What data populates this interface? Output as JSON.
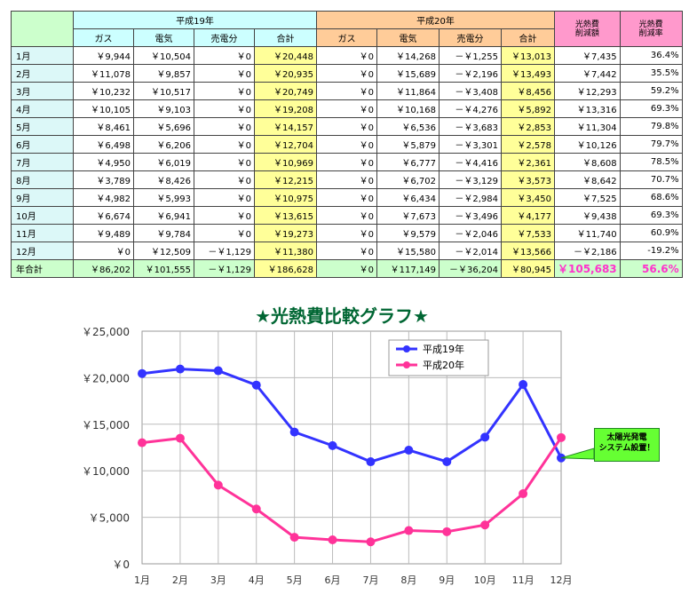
{
  "table": {
    "group_2007": "平成19年",
    "group_2008": "平成20年",
    "col_reduction_amount": [
      "光熱費",
      "削減額"
    ],
    "col_reduction_rate": [
      "光熱費",
      "削減率"
    ],
    "subheaders": [
      "ガス",
      "電気",
      "売電分",
      "合計",
      "ガス",
      "電気",
      "売電分",
      "合計"
    ],
    "rows": [
      {
        "month": "1月",
        "y19": [
          "￥9,944",
          "￥10,504",
          "￥0",
          "￥20,448"
        ],
        "y20": [
          "￥0",
          "￥14,268",
          "－￥1,255",
          "￥13,013"
        ],
        "reduction": "￥7,435",
        "rate": "36.4%"
      },
      {
        "month": "2月",
        "y19": [
          "￥11,078",
          "￥9,857",
          "￥0",
          "￥20,935"
        ],
        "y20": [
          "￥0",
          "￥15,689",
          "－￥2,196",
          "￥13,493"
        ],
        "reduction": "￥7,442",
        "rate": "35.5%"
      },
      {
        "month": "3月",
        "y19": [
          "￥10,232",
          "￥10,517",
          "￥0",
          "￥20,749"
        ],
        "y20": [
          "￥0",
          "￥11,864",
          "－￥3,408",
          "￥8,456"
        ],
        "reduction": "￥12,293",
        "rate": "59.2%"
      },
      {
        "month": "4月",
        "y19": [
          "￥10,105",
          "￥9,103",
          "￥0",
          "￥19,208"
        ],
        "y20": [
          "￥0",
          "￥10,168",
          "－￥4,276",
          "￥5,892"
        ],
        "reduction": "￥13,316",
        "rate": "69.3%"
      },
      {
        "month": "5月",
        "y19": [
          "￥8,461",
          "￥5,696",
          "￥0",
          "￥14,157"
        ],
        "y20": [
          "￥0",
          "￥6,536",
          "－￥3,683",
          "￥2,853"
        ],
        "reduction": "￥11,304",
        "rate": "79.8%"
      },
      {
        "month": "6月",
        "y19": [
          "￥6,498",
          "￥6,206",
          "￥0",
          "￥12,704"
        ],
        "y20": [
          "￥0",
          "￥5,879",
          "－￥3,301",
          "￥2,578"
        ],
        "reduction": "￥10,126",
        "rate": "79.7%"
      },
      {
        "month": "7月",
        "y19": [
          "￥4,950",
          "￥6,019",
          "￥0",
          "￥10,969"
        ],
        "y20": [
          "￥0",
          "￥6,777",
          "－￥4,416",
          "￥2,361"
        ],
        "reduction": "￥8,608",
        "rate": "78.5%"
      },
      {
        "month": "8月",
        "y19": [
          "￥3,789",
          "￥8,426",
          "￥0",
          "￥12,215"
        ],
        "y20": [
          "￥0",
          "￥6,702",
          "－￥3,129",
          "￥3,573"
        ],
        "reduction": "￥8,642",
        "rate": "70.7%"
      },
      {
        "month": "9月",
        "y19": [
          "￥4,982",
          "￥5,993",
          "￥0",
          "￥10,975"
        ],
        "y20": [
          "￥0",
          "￥6,434",
          "－￥2,984",
          "￥3,450"
        ],
        "reduction": "￥7,525",
        "rate": "68.6%"
      },
      {
        "month": "10月",
        "y19": [
          "￥6,674",
          "￥6,941",
          "￥0",
          "￥13,615"
        ],
        "y20": [
          "￥0",
          "￥7,673",
          "－￥3,496",
          "￥4,177"
        ],
        "reduction": "￥9,438",
        "rate": "69.3%"
      },
      {
        "month": "11月",
        "y19": [
          "￥9,489",
          "￥9,784",
          "￥0",
          "￥19,273"
        ],
        "y20": [
          "￥0",
          "￥9,579",
          "－￥2,046",
          "￥7,533"
        ],
        "reduction": "￥11,740",
        "rate": "60.9%"
      },
      {
        "month": "12月",
        "y19": [
          "￥0",
          "￥12,509",
          "－￥1,129",
          "￥11,380"
        ],
        "y20": [
          "￥0",
          "￥15,580",
          "－￥2,014",
          "￥13,566"
        ],
        "reduction": "－￥2,186",
        "rate": "-19.2%"
      }
    ],
    "total": {
      "month": "年合計",
      "y19": [
        "￥86,202",
        "￥101,555",
        "－￥1,129",
        "￥186,628"
      ],
      "y20": [
        "￥0",
        "￥117,149",
        "－￥36,204",
        "￥80,945"
      ],
      "reduction": "￥105,683",
      "rate": "56.6%"
    }
  },
  "chart_data": {
    "type": "line",
    "title": "★光熱費比較グラフ★",
    "categories": [
      "1月",
      "2月",
      "3月",
      "4月",
      "5月",
      "6月",
      "7月",
      "8月",
      "9月",
      "10月",
      "11月",
      "12月"
    ],
    "series": [
      {
        "name": "平成19年",
        "color": "#3333ff",
        "values": [
          20448,
          20935,
          20749,
          19208,
          14157,
          12704,
          10969,
          12215,
          10975,
          13615,
          19273,
          11380
        ]
      },
      {
        "name": "平成20年",
        "color": "#ff3399",
        "values": [
          13013,
          13493,
          8456,
          5892,
          2853,
          2578,
          2361,
          3573,
          3450,
          4177,
          7533,
          13566
        ]
      }
    ],
    "yticks": [
      "￥0",
      "￥5,000",
      "￥10,000",
      "￥15,000",
      "￥20,000",
      "￥25,000"
    ],
    "ylim": [
      0,
      25000
    ],
    "grid": true,
    "legend": "top-center",
    "annotation": [
      "太陽光発電",
      "システム設置！"
    ],
    "annotation_color": "#66ff33"
  }
}
